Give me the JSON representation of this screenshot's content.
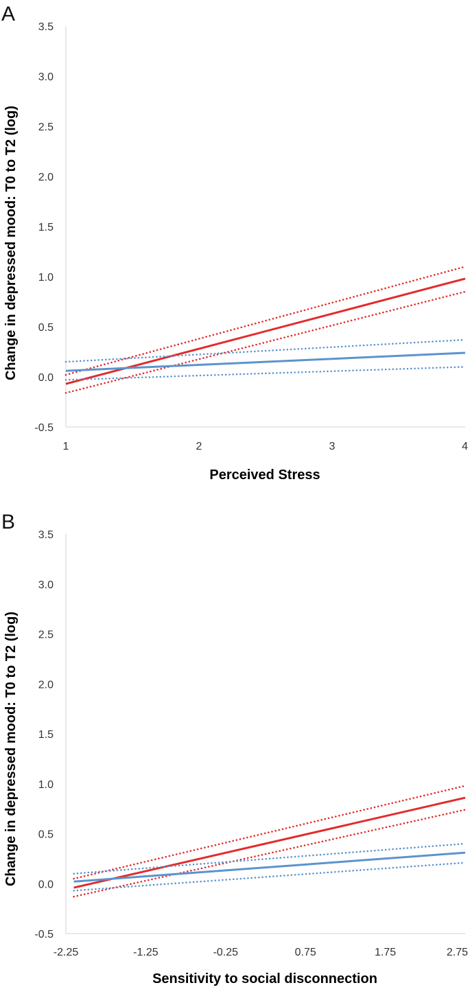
{
  "chart_data": [
    {
      "panel": "A",
      "type": "line",
      "title": "",
      "xlabel": "Perceived Stress",
      "ylabel": "Change in depressed mood: T0 to T2 (log)",
      "xlim": [
        1,
        4
      ],
      "ylim": [
        -0.5,
        3.5
      ],
      "xticks": [
        "1",
        "2",
        "3",
        "4"
      ],
      "xtick_values": [
        1,
        2,
        3,
        4
      ],
      "yticks": [
        "-0.5",
        "0.0",
        "0.5",
        "1.0",
        "1.5",
        "2.0",
        "2.5",
        "3.0",
        "3.5"
      ],
      "ytick_values": [
        -0.5,
        0,
        0.5,
        1,
        1.5,
        2,
        2.5,
        3,
        3.5
      ],
      "grid": false,
      "series": [
        {
          "name": "red-estimate",
          "color": "#e32b2b",
          "style": "solid",
          "x": [
            1,
            4
          ],
          "y": [
            -0.07,
            0.98
          ]
        },
        {
          "name": "red-ci-upper",
          "color": "#e32b2b",
          "style": "dotted",
          "x": [
            1,
            4
          ],
          "y": [
            0.02,
            1.1
          ]
        },
        {
          "name": "red-ci-lower",
          "color": "#e32b2b",
          "style": "dotted",
          "x": [
            1,
            4
          ],
          "y": [
            -0.16,
            0.85
          ]
        },
        {
          "name": "blue-estimate",
          "color": "#5b93cf",
          "style": "solid",
          "x": [
            1,
            4
          ],
          "y": [
            0.06,
            0.24
          ]
        },
        {
          "name": "blue-ci-upper",
          "color": "#5b93cf",
          "style": "dotted",
          "x": [
            1,
            4
          ],
          "y": [
            0.15,
            0.37
          ]
        },
        {
          "name": "blue-ci-lower",
          "color": "#5b93cf",
          "style": "dotted",
          "x": [
            1,
            4
          ],
          "y": [
            -0.03,
            0.1
          ]
        }
      ]
    },
    {
      "panel": "B",
      "type": "line",
      "title": "",
      "xlabel": "Sensitivity to social disconnection",
      "ylabel": "Change in depressed mood: T0 to T2 (log)",
      "xlim": [
        -2.25,
        2.75
      ],
      "ylim": [
        -0.5,
        3.5
      ],
      "xticks": [
        "-2.25",
        "-1.25",
        "-0.25",
        "0.75",
        "1.75",
        "2.75"
      ],
      "xtick_values": [
        -2.25,
        -1.25,
        -0.25,
        0.75,
        1.75,
        2.75
      ],
      "yticks": [
        "-0.5",
        "0.0",
        "0.5",
        "1.0",
        "1.5",
        "2.0",
        "2.5",
        "3.0",
        "3.5"
      ],
      "ytick_values": [
        -0.5,
        0,
        0.5,
        1,
        1.5,
        2,
        2.5,
        3,
        3.5
      ],
      "grid": false,
      "series": [
        {
          "name": "red-estimate",
          "color": "#e32b2b",
          "style": "solid",
          "x": [
            -2.15,
            2.75
          ],
          "y": [
            -0.04,
            0.86
          ]
        },
        {
          "name": "red-ci-upper",
          "color": "#e32b2b",
          "style": "dotted",
          "x": [
            -2.15,
            2.75
          ],
          "y": [
            0.05,
            0.98
          ]
        },
        {
          "name": "red-ci-lower",
          "color": "#e32b2b",
          "style": "dotted",
          "x": [
            -2.15,
            2.75
          ],
          "y": [
            -0.13,
            0.74
          ]
        },
        {
          "name": "blue-estimate",
          "color": "#5b93cf",
          "style": "solid",
          "x": [
            -2.15,
            2.75
          ],
          "y": [
            0.02,
            0.31
          ]
        },
        {
          "name": "blue-ci-upper",
          "color": "#5b93cf",
          "style": "dotted",
          "x": [
            -2.15,
            2.75
          ],
          "y": [
            0.1,
            0.4
          ]
        },
        {
          "name": "blue-ci-lower",
          "color": "#5b93cf",
          "style": "dotted",
          "x": [
            -2.15,
            2.75
          ],
          "y": [
            -0.07,
            0.21
          ]
        }
      ]
    }
  ]
}
